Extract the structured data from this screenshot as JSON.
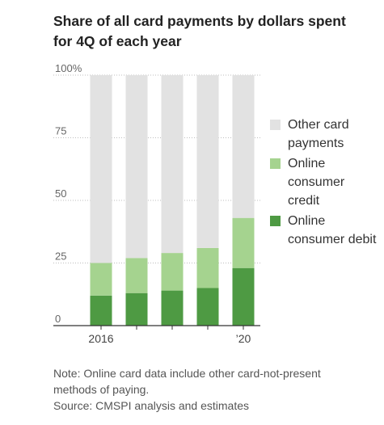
{
  "header": {
    "title_line1": "Share of all card payments by dollars spent",
    "title_line2": "for 4Q of each year"
  },
  "chart_data": {
    "type": "bar",
    "stacked": true,
    "categories": [
      "2016",
      "",
      "",
      "",
      "’20"
    ],
    "series": [
      {
        "name": "Online consumer debit",
        "values": [
          12,
          13,
          14,
          15,
          23
        ],
        "color": "#4e9a43"
      },
      {
        "name": "Online consumer credit",
        "values": [
          13,
          14,
          15,
          16,
          20
        ],
        "color": "#a5d38f"
      },
      {
        "name": "Other card payments",
        "values": [
          75,
          73,
          71,
          69,
          57
        ],
        "color": "#e2e2e2"
      }
    ],
    "yticks": [
      "0",
      "25",
      "50",
      "75",
      "100%"
    ],
    "ytick_values": [
      0,
      25,
      50,
      75,
      100
    ],
    "ylim": [
      0,
      100
    ],
    "grid": true,
    "legend_position": "right"
  },
  "legend": [
    {
      "label": "Other card payments",
      "color": "#e2e2e2"
    },
    {
      "label": "Online consumer credit",
      "color": "#a5d38f"
    },
    {
      "label": "Online consumer debit",
      "color": "#4e9a43"
    }
  ],
  "footer": {
    "note_line1": "Note: Online card data include other card-not-present",
    "note_line2": "methods of paying.",
    "source": "Source: CMSPI analysis and estimates"
  }
}
